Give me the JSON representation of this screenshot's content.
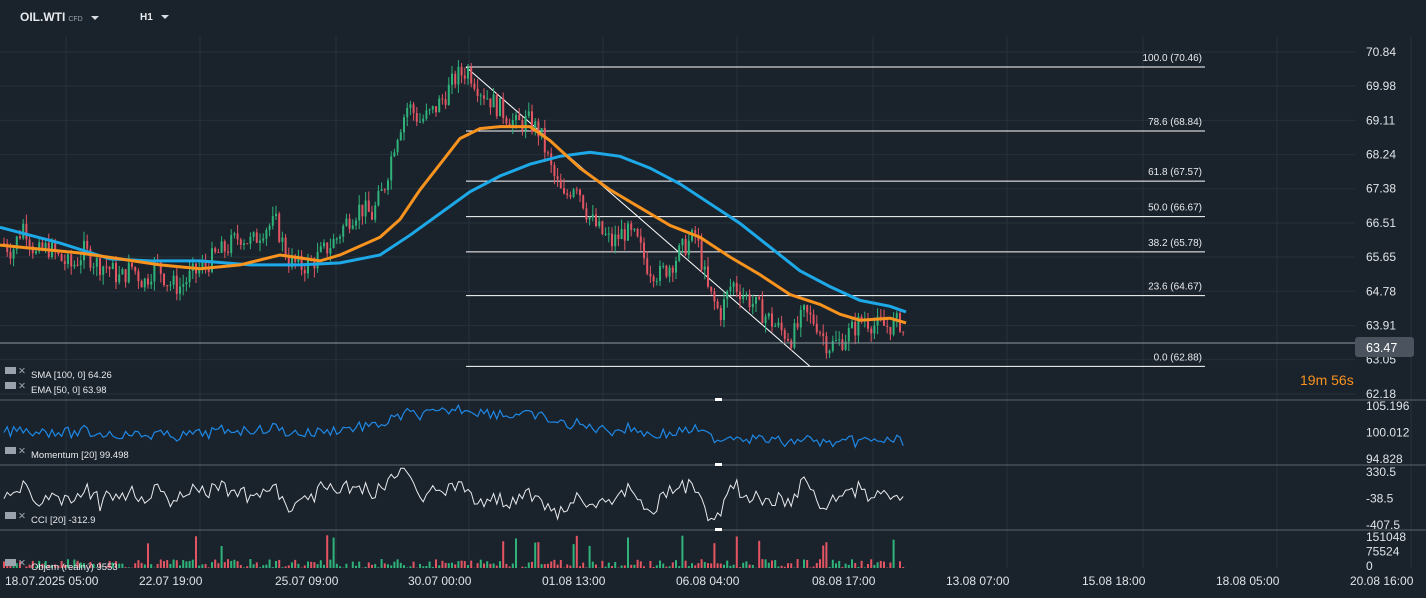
{
  "header": {
    "symbol": "OIL.WTI",
    "symbol_sub": "CFD",
    "timeframe": "H1"
  },
  "countdown": {
    "minutes": "19",
    "min_unit": "m",
    "seconds": "56",
    "sec_unit": "s"
  },
  "colors": {
    "background": "#1a222b",
    "grid": "#27313b",
    "up": "#2fb37a",
    "down": "#e25563",
    "ema": "#f7931e",
    "sma": "#1da9e8",
    "momentum": "#1e88e5",
    "cci": "#e8eaed",
    "price_tag": "#4b545e",
    "axis_text": "#e0e4e8"
  },
  "chart_data": [
    {
      "type": "candlestick",
      "title": "OIL.WTI H1",
      "y_ticks": [
        "70.84",
        "69.98",
        "69.11",
        "68.24",
        "67.38",
        "66.51",
        "65.65",
        "64.78",
        "63.91",
        "63.05",
        "62.18"
      ],
      "y_range": [
        62.18,
        70.84
      ],
      "x_ticks": [
        "18.07.2025  05:00",
        "22.07  19:00",
        "25.07  09:00",
        "30.07  00:00",
        "01.08  13:00",
        "06.08  04:00",
        "08.08  17:00",
        "13.08  07:00",
        "15.08  18:00",
        "18.08  05:00",
        "20.08  16:00"
      ],
      "last_price": "63.47",
      "last_price_value": 63.47,
      "close_path": [
        [
          0,
          66.1
        ],
        [
          12,
          65.8
        ],
        [
          24,
          66.5
        ],
        [
          36,
          65.7
        ],
        [
          48,
          65.9
        ],
        [
          60,
          65.6
        ],
        [
          72,
          65.4
        ],
        [
          84,
          65.8
        ],
        [
          96,
          65.5
        ],
        [
          108,
          65.4
        ],
        [
          120,
          65.1
        ],
        [
          132,
          65.4
        ],
        [
          144,
          65.0
        ],
        [
          156,
          65.5
        ],
        [
          168,
          65.0
        ],
        [
          180,
          64.9
        ],
        [
          192,
          65.2
        ],
        [
          204,
          65.4
        ],
        [
          216,
          65.7
        ],
        [
          228,
          65.9
        ],
        [
          240,
          66.2
        ],
        [
          252,
          66.0
        ],
        [
          264,
          66.4
        ],
        [
          276,
          66.5
        ],
        [
          288,
          65.6
        ],
        [
          300,
          65.4
        ],
        [
          312,
          65.5
        ],
        [
          324,
          65.8
        ],
        [
          336,
          66.1
        ],
        [
          348,
          66.6
        ],
        [
          360,
          66.9
        ],
        [
          372,
          66.7
        ],
        [
          384,
          67.4
        ],
        [
          396,
          68.7
        ],
        [
          408,
          69.5
        ],
        [
          420,
          69.1
        ],
        [
          432,
          69.3
        ],
        [
          444,
          69.7
        ],
        [
          456,
          70.2
        ],
        [
          468,
          70.4
        ],
        [
          480,
          69.9
        ],
        [
          492,
          69.6
        ],
        [
          504,
          69.3
        ],
        [
          516,
          69.0
        ],
        [
          528,
          69.1
        ],
        [
          540,
          68.8
        ],
        [
          552,
          67.8
        ],
        [
          564,
          67.1
        ],
        [
          576,
          67.6
        ],
        [
          588,
          66.7
        ],
        [
          600,
          66.3
        ],
        [
          612,
          66.0
        ],
        [
          624,
          66.3
        ],
        [
          636,
          66.1
        ],
        [
          648,
          65.4
        ],
        [
          660,
          65.2
        ],
        [
          672,
          65.5
        ],
        [
          684,
          65.9
        ],
        [
          696,
          66.2
        ],
        [
          708,
          64.8
        ],
        [
          720,
          64.2
        ],
        [
          732,
          65.0
        ],
        [
          744,
          64.7
        ],
        [
          756,
          64.4
        ],
        [
          768,
          64.1
        ],
        [
          780,
          63.8
        ],
        [
          792,
          63.6
        ],
        [
          804,
          64.2
        ],
        [
          816,
          64.0
        ],
        [
          828,
          63.4
        ],
        [
          840,
          63.5
        ],
        [
          852,
          63.8
        ],
        [
          864,
          64.1
        ],
        [
          876,
          63.9
        ],
        [
          888,
          63.9
        ],
        [
          900,
          64.0
        ],
        [
          906,
          63.5
        ]
      ],
      "ema_path": [
        [
          0,
          65.95
        ],
        [
          40,
          65.85
        ],
        [
          80,
          65.75
        ],
        [
          120,
          65.6
        ],
        [
          160,
          65.45
        ],
        [
          200,
          65.35
        ],
        [
          240,
          65.45
        ],
        [
          280,
          65.7
        ],
        [
          320,
          65.55
        ],
        [
          340,
          65.7
        ],
        [
          380,
          66.15
        ],
        [
          400,
          66.6
        ],
        [
          420,
          67.35
        ],
        [
          440,
          68.0
        ],
        [
          460,
          68.65
        ],
        [
          480,
          68.9
        ],
        [
          500,
          68.95
        ],
        [
          530,
          68.95
        ],
        [
          550,
          68.6
        ],
        [
          580,
          67.9
        ],
        [
          610,
          67.35
        ],
        [
          640,
          66.9
        ],
        [
          670,
          66.45
        ],
        [
          700,
          66.15
        ],
        [
          730,
          65.65
        ],
        [
          760,
          65.2
        ],
        [
          790,
          64.7
        ],
        [
          820,
          64.45
        ],
        [
          840,
          64.2
        ],
        [
          860,
          64.05
        ],
        [
          890,
          64.1
        ],
        [
          906,
          63.98
        ]
      ],
      "sma_path": [
        [
          0,
          66.4
        ],
        [
          60,
          66.0
        ],
        [
          110,
          65.6
        ],
        [
          150,
          65.55
        ],
        [
          200,
          65.55
        ],
        [
          250,
          65.45
        ],
        [
          300,
          65.45
        ],
        [
          340,
          65.5
        ],
        [
          380,
          65.7
        ],
        [
          410,
          66.2
        ],
        [
          440,
          66.75
        ],
        [
          470,
          67.3
        ],
        [
          500,
          67.7
        ],
        [
          530,
          68.0
        ],
        [
          560,
          68.2
        ],
        [
          590,
          68.3
        ],
        [
          620,
          68.2
        ],
        [
          650,
          67.9
        ],
        [
          680,
          67.5
        ],
        [
          710,
          67.0
        ],
        [
          740,
          66.5
        ],
        [
          770,
          65.9
        ],
        [
          800,
          65.3
        ],
        [
          830,
          64.9
        ],
        [
          860,
          64.55
        ],
        [
          890,
          64.4
        ],
        [
          906,
          64.26
        ]
      ],
      "fib_levels": [
        {
          "label": "100.0 (70.46)",
          "value": 70.46
        },
        {
          "label": "78.6 (68.84)",
          "value": 68.84
        },
        {
          "label": "61.8 (67.57)",
          "value": 67.57
        },
        {
          "label": "50.0 (66.67)",
          "value": 66.67
        },
        {
          "label": "38.2 (65.78)",
          "value": 65.78
        },
        {
          "label": "23.6 (64.67)",
          "value": 64.67
        },
        {
          "label": "0.0 (62.88)",
          "value": 62.88
        }
      ],
      "fib_trendline": [
        [
          466,
          70.46
        ],
        [
          810,
          62.88
        ]
      ]
    },
    {
      "type": "line",
      "title": "Momentum",
      "y_ticks": [
        "105.196",
        "100.012",
        "94.828"
      ],
      "y_range": [
        94.828,
        105.196
      ]
    },
    {
      "type": "line",
      "title": "CCI",
      "y_ticks": [
        "330.5",
        "-38.5",
        "-407.5"
      ],
      "y_range": [
        -407.5,
        330.5
      ]
    },
    {
      "type": "bar",
      "title": "Objem",
      "y_ticks": [
        "151048",
        "75524",
        "0"
      ],
      "y_range": [
        0,
        151048
      ]
    }
  ],
  "legends": {
    "sma": {
      "name": "SMA",
      "params": "[100,  0]",
      "value": "64.26"
    },
    "ema": {
      "name": "EMA",
      "params": "[50,  0]",
      "value": "63.98"
    },
    "momentum": {
      "name": "Momentum",
      "params": "[20]",
      "value": "99.498"
    },
    "cci": {
      "name": "CCI",
      "params": "[20]",
      "value": "-312.9"
    },
    "volume": {
      "name": "Objem",
      "params": "(reálný)",
      "value": "9553"
    }
  }
}
